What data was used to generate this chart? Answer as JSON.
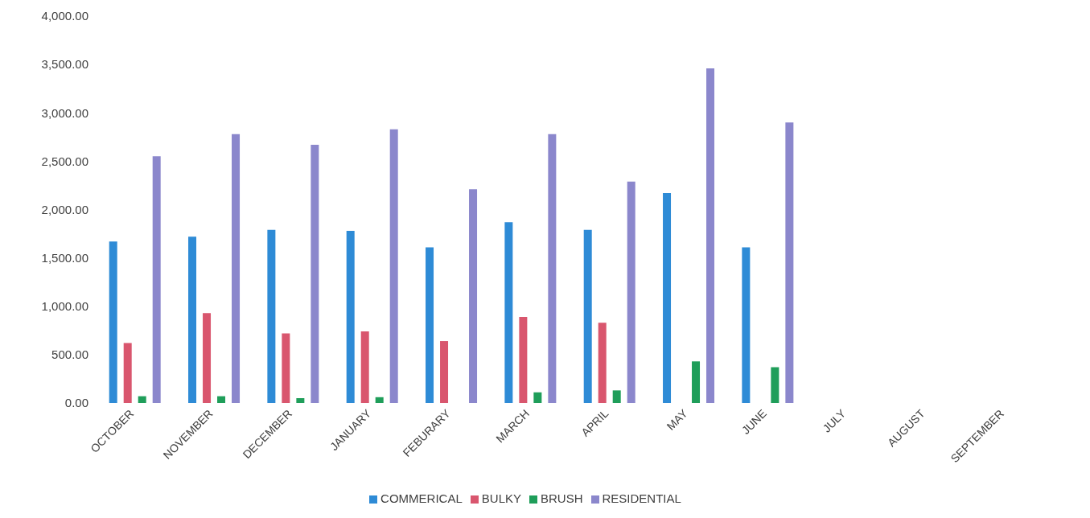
{
  "chart_data": {
    "type": "bar",
    "categories": [
      "OCTOBER",
      "NOVEMBER",
      "DECEMBER",
      "JANUARY",
      "FEBURARY",
      "MARCH",
      "APRIL",
      "MAY",
      "JUNE",
      "JULY",
      "AUGUST",
      "SEPTEMBER"
    ],
    "series": [
      {
        "name": "COMMERICAL",
        "color": "#2e8bd6",
        "values": [
          1670,
          1720,
          1790,
          1780,
          1610,
          1870,
          1790,
          2170,
          1610,
          null,
          null,
          null
        ]
      },
      {
        "name": "BULKY",
        "color": "#d9566e",
        "values": [
          620,
          930,
          720,
          740,
          640,
          890,
          830,
          null,
          null,
          null,
          null,
          null
        ]
      },
      {
        "name": "BRUSH",
        "color": "#1f9e5a",
        "values": [
          70,
          70,
          50,
          60,
          null,
          110,
          130,
          430,
          370,
          null,
          null,
          null
        ]
      },
      {
        "name": "RESIDENTIAL",
        "color": "#8b87cc",
        "values": [
          2550,
          2780,
          2670,
          2830,
          2210,
          2780,
          2290,
          3460,
          2900,
          null,
          null,
          null
        ]
      }
    ],
    "ylim": [
      0,
      4000
    ],
    "yticks": [
      {
        "value": 0,
        "label": "0.00"
      },
      {
        "value": 500,
        "label": "500.00"
      },
      {
        "value": 1000,
        "label": "1,000.00"
      },
      {
        "value": 1500,
        "label": "1,500.00"
      },
      {
        "value": 2000,
        "label": "2,000.00"
      },
      {
        "value": 2500,
        "label": "2,500.00"
      },
      {
        "value": 3000,
        "label": "3,000.00"
      },
      {
        "value": 3500,
        "label": "3,500.00"
      },
      {
        "value": 4000,
        "label": "4,000.00"
      }
    ],
    "grid": false,
    "legend": "bottom"
  }
}
